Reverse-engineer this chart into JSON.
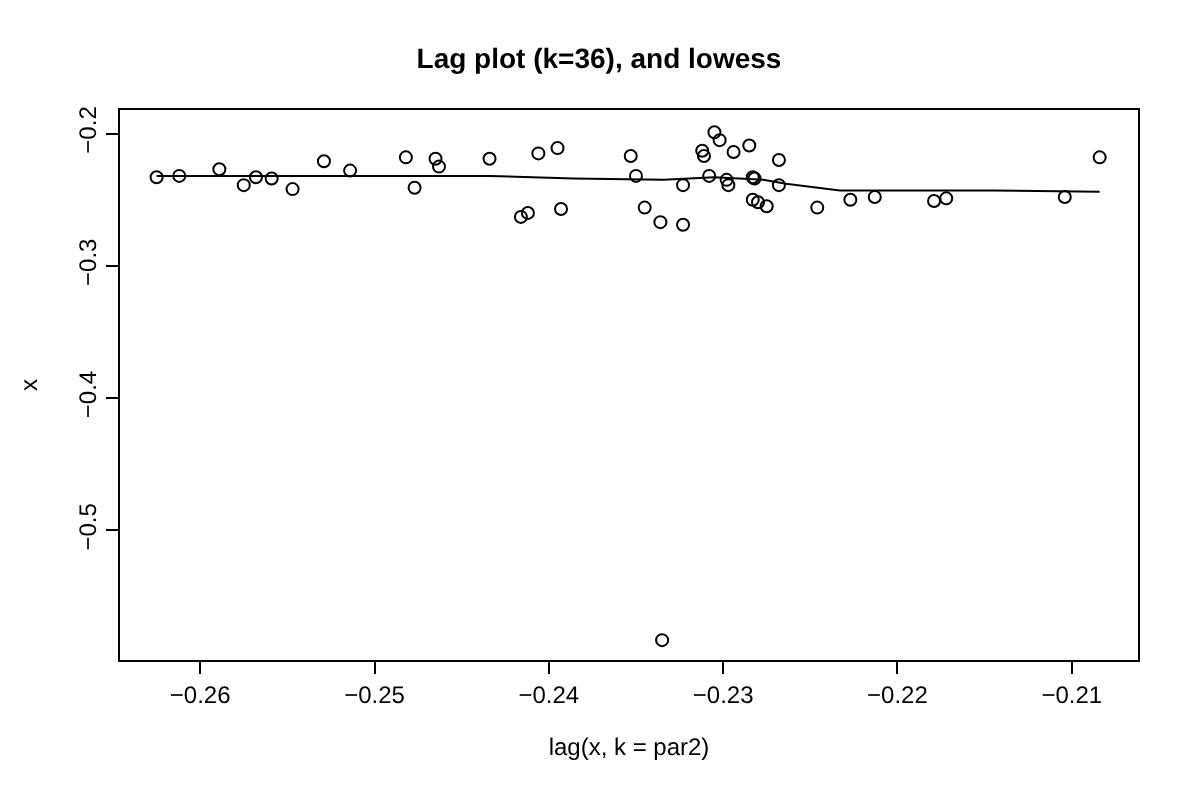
{
  "chart_data": {
    "type": "scatter",
    "title": "Lag plot (k=36), and lowess",
    "xlabel": "lag(x, k = par2)",
    "ylabel": "x",
    "xlim": [
      -0.2646,
      -0.2062
    ],
    "ylim": [
      -0.598,
      -0.1822
    ],
    "xticks": [
      {
        "value": -0.26,
        "label": "−0.26"
      },
      {
        "value": -0.25,
        "label": "−0.25"
      },
      {
        "value": -0.24,
        "label": "−0.24"
      },
      {
        "value": -0.23,
        "label": "−0.23"
      },
      {
        "value": -0.22,
        "label": "−0.22"
      },
      {
        "value": -0.21,
        "label": "−0.21"
      }
    ],
    "yticks": [
      {
        "value": -0.2,
        "label": "−0.2"
      },
      {
        "value": -0.3,
        "label": "−0.3"
      },
      {
        "value": -0.4,
        "label": "−0.4"
      },
      {
        "value": -0.5,
        "label": "−0.5"
      }
    ],
    "series": [
      {
        "marker": "circle",
        "color": "#000000",
        "x": [
          -0.2625,
          -0.2612,
          -0.2589,
          -0.2575,
          -0.2568,
          -0.2559,
          -0.2547,
          -0.2529,
          -0.2514,
          -0.2482,
          -0.2477,
          -0.2465,
          -0.2463,
          -0.2434,
          -0.2416,
          -0.2412,
          -0.2406,
          -0.2395,
          -0.2393,
          -0.2353,
          -0.235,
          -0.2345,
          -0.2336,
          -0.2335,
          -0.2323,
          -0.2323,
          -0.2312,
          -0.2311,
          -0.2308,
          -0.2305,
          -0.2302,
          -0.2298,
          -0.2297,
          -0.2294,
          -0.2285,
          -0.2283,
          -0.2283,
          -0.2282,
          -0.228,
          -0.2275,
          -0.2268,
          -0.2268,
          -0.2246,
          -0.2227,
          -0.2213,
          -0.2179,
          -0.2172,
          -0.2104,
          -0.2084
        ],
        "values": [
          -0.233,
          -0.232,
          -0.227,
          -0.239,
          -0.233,
          -0.234,
          -0.242,
          -0.221,
          -0.228,
          -0.218,
          -0.241,
          -0.219,
          -0.225,
          -0.219,
          -0.263,
          -0.26,
          -0.215,
          -0.211,
          -0.257,
          -0.217,
          -0.232,
          -0.256,
          -0.267,
          -0.583,
          -0.239,
          -0.269,
          -0.213,
          -0.217,
          -0.232,
          -0.199,
          -0.205,
          -0.235,
          -0.239,
          -0.214,
          -0.209,
          -0.25,
          -0.233,
          -0.234,
          -0.252,
          -0.255,
          -0.22,
          -0.239,
          -0.256,
          -0.25,
          -0.248,
          -0.251,
          -0.249,
          -0.248,
          -0.218
        ]
      },
      {
        "type": "line",
        "marker": "none",
        "line_style": "solid",
        "color": "#000000",
        "x": [
          -0.2625,
          -0.2434,
          -0.2386,
          -0.2334,
          -0.2305,
          -0.2277,
          -0.2264,
          -0.2233,
          -0.2189,
          -0.2146,
          -0.2084
        ],
        "values": [
          -0.232,
          -0.232,
          -0.234,
          -0.235,
          -0.233,
          -0.235,
          -0.238,
          -0.243,
          -0.243,
          -0.243,
          -0.244
        ]
      }
    ]
  }
}
